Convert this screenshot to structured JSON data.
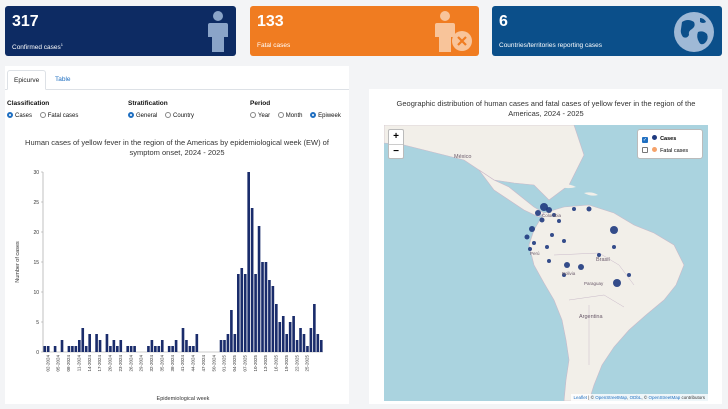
{
  "kpis": {
    "confirmed": {
      "value": "317",
      "label": "Confirmed cases",
      "sup": "1"
    },
    "fatal": {
      "value": "133",
      "label": "Fatal cases"
    },
    "countries": {
      "value": "6",
      "label": "Countries/territories reporting cases"
    }
  },
  "tabs": [
    "Epicurve",
    "Table"
  ],
  "filters": {
    "classification": {
      "title": "Classification",
      "options": [
        "Cases",
        "Fatal cases"
      ],
      "selected": "Cases"
    },
    "stratification": {
      "title": "Stratification",
      "options": [
        "General",
        "Country"
      ],
      "selected": "General"
    },
    "period": {
      "title": "Period",
      "options": [
        "Year",
        "Month",
        "Epiweek"
      ],
      "selected": "Epiweek"
    }
  },
  "chart_title": "Human cases of yellow fever in the region of the Americas by epidemiological week (EW) of symptom onset, 2024 - 2025",
  "chart_data": {
    "type": "bar",
    "xlabel": "Epidemiological week",
    "ylabel": "Number of cases",
    "ylim": [
      0,
      30
    ],
    "yticks": [
      0,
      5,
      10,
      15,
      20,
      25,
      30
    ],
    "tick_labels": [
      "02-2024",
      "05-2024",
      "08-2024",
      "11-2024",
      "14-2024",
      "17-2024",
      "20-2024",
      "23-2024",
      "26-2024",
      "29-2024",
      "32-2024",
      "35-2024",
      "38-2024",
      "41-2024",
      "44-2024",
      "47-2024",
      "50-2024",
      "01-2025",
      "04-2025",
      "07-2025",
      "10-2025",
      "13-2025",
      "16-2025",
      "19-2025",
      "22-2025",
      "25-2025"
    ],
    "values": [
      1,
      1,
      0,
      1,
      0,
      2,
      0,
      1,
      1,
      1,
      2,
      4,
      1,
      3,
      0,
      3,
      2,
      0,
      3,
      1,
      2,
      1,
      2,
      0,
      1,
      1,
      1,
      0,
      0,
      0,
      1,
      2,
      1,
      1,
      2,
      0,
      1,
      1,
      2,
      0,
      4,
      2,
      1,
      1,
      3,
      0,
      0,
      0,
      0,
      0,
      0,
      2,
      2,
      3,
      7,
      3,
      13,
      14,
      13,
      30,
      24,
      13,
      21,
      15,
      15,
      12,
      11,
      8,
      5,
      6,
      3,
      5,
      6,
      2,
      4,
      3,
      1,
      4,
      8,
      3,
      2
    ]
  },
  "map": {
    "title": "Geographic distribution of human cases and fatal cases of yellow fever in the region of the Americas, 2024 - 2025",
    "zoom_in": "+",
    "zoom_out": "−",
    "legend": {
      "cases": "Cases",
      "fatal": "Fatal cases"
    },
    "labels": [
      "México",
      "Brasil",
      "Paraguay",
      "Argentina",
      "Colombia",
      "Perú",
      "Bolivia"
    ],
    "attribution": {
      "prefix": "Leaflet",
      "sep": "| ©",
      "osm": "OpenStreetMap",
      "odbl": "ODbL",
      "contrib": "contributors"
    }
  },
  "colors": {
    "navy": "#0d2b63",
    "orange": "#f07c21",
    "blue": "#0b4f8a",
    "bar": "#1a2c6b",
    "fatal": "#f5a26a"
  }
}
